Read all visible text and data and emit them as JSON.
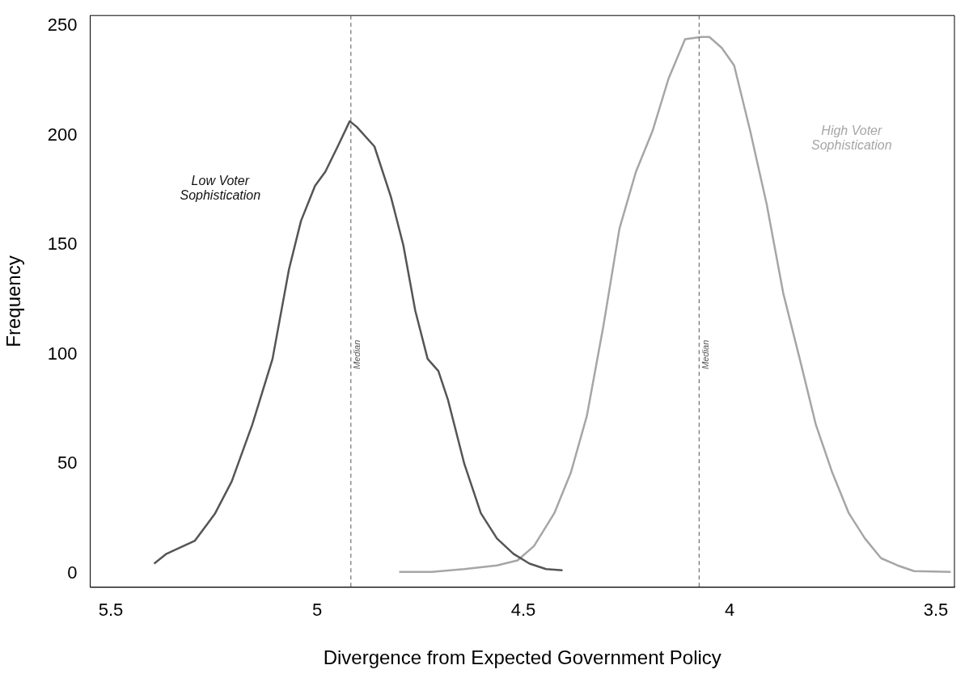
{
  "chart_data": {
    "type": "line",
    "xlabel": "Divergence from Expected Government Policy",
    "ylabel": "Frequency",
    "xlim": [
      5.55,
      3.455
    ],
    "ylim": [
      -6.3,
      254.8
    ],
    "xticks": [
      5.5,
      5,
      4.5,
      4,
      3.5
    ],
    "yticks": [
      0,
      50,
      100,
      150,
      200,
      250
    ],
    "grid": false,
    "legend": false,
    "marker": "none",
    "line_style": "solid",
    "series": [
      {
        "color": "#555555",
        "x": [
          5.395,
          5.365,
          5.296,
          5.247,
          5.207,
          5.157,
          5.108,
          5.068,
          5.039,
          5.005,
          4.98,
          4.95,
          4.921,
          4.904,
          4.861,
          4.821,
          4.791,
          4.762,
          4.732,
          4.706,
          4.683,
          4.643,
          4.603,
          4.564,
          4.524,
          4.485,
          4.445,
          4.405
        ],
        "values": [
          4.5,
          9,
          15,
          27.5,
          42,
          68,
          98,
          139,
          161,
          177,
          183.5,
          195,
          206.5,
          204,
          195,
          172,
          150,
          120,
          98,
          92.5,
          79.5,
          50,
          27.5,
          16,
          9,
          4.5,
          2,
          1.5
        ]
      },
      {
        "color": "#a6a6a6",
        "x": [
          4.801,
          4.722,
          4.643,
          4.564,
          4.514,
          4.474,
          4.425,
          4.385,
          4.346,
          4.306,
          4.267,
          4.227,
          4.187,
          4.148,
          4.108,
          4.069,
          4.049,
          4.019,
          3.989,
          3.95,
          3.91,
          3.87,
          3.83,
          3.791,
          3.751,
          3.711,
          3.672,
          3.633,
          3.593,
          3.553,
          3.464
        ],
        "values": [
          0.7,
          0.7,
          2,
          3.7,
          6,
          12.6,
          27.5,
          46,
          72,
          113,
          157.5,
          183.5,
          202,
          226,
          244,
          245,
          245,
          240,
          232,
          202,
          168.5,
          128,
          98,
          68,
          46,
          27.5,
          16,
          7,
          3.7,
          1.1,
          0.7
        ]
      }
    ],
    "ref_lines": [
      {
        "axis": "x",
        "value": 4.918,
        "label": "Median",
        "color": "#555555",
        "line_style": "dashed"
      },
      {
        "axis": "x",
        "value": 4.074,
        "label": "Median",
        "color": "#555555",
        "line_style": "dashed"
      }
    ],
    "annotations": [
      "Low Voter\nSophistication",
      "High Voter\nSophistication"
    ]
  }
}
